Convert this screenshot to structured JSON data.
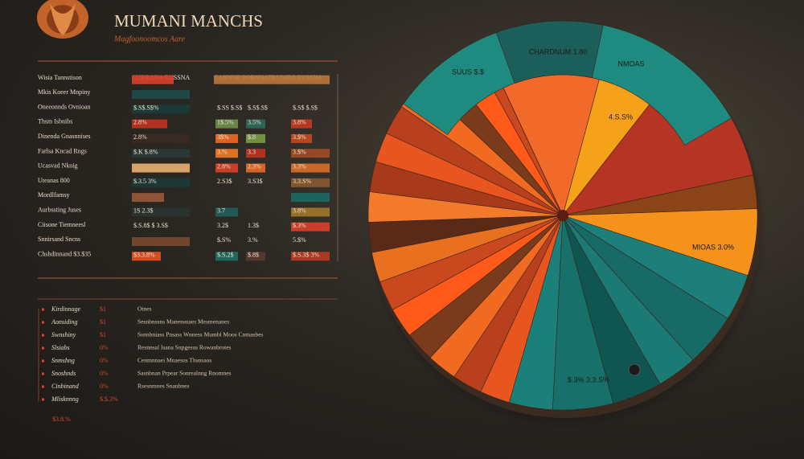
{
  "header": {
    "title": "MUMANI MANCHS",
    "subtitle": "Magfoonoomcos Aare"
  },
  "table": {
    "columns": [
      "CURRANA RUSSNA",
      "CANNNE PORNNATRUNIRS RUSSNA"
    ],
    "rows": [
      {
        "label": "Wisia Tannstison"
      },
      {
        "label": "Mkis Koeer Mnpiny"
      },
      {
        "label": "Oneeonnds Ovnioan",
        "c1": "$.S$.S$%",
        "c2": "$.SS $.S$",
        "c3": "$.S$.S$",
        "c4": "$.S$ $.S$"
      },
      {
        "label": "Thsm Isbnibs",
        "c1": "2.8%",
        "c2": "1$.5%",
        "c3": "3.5%",
        "c4": "3.8%"
      },
      {
        "label": "Dinenda Gnasnnises",
        "c1": "2.8%",
        "c2": "3$%",
        "c3": "$.8",
        "c4": "3.$%"
      },
      {
        "label": "Farlsa Kncad Rngs",
        "c1": "$.K $.8%",
        "c2": "3.%",
        "c3": "3.3",
        "c4": "3.$%"
      },
      {
        "label": "Ucasvad Nkoig",
        "c2": "2.8%",
        "c3": "2.3%",
        "c4": "3.3%"
      },
      {
        "label": "Uteanas 800",
        "c1": "$.3.5 3%",
        "c2": "2.S3$",
        "c3": "3.S3$",
        "c4": "3.3.S%"
      },
      {
        "label": "Mordlfamsy"
      },
      {
        "label": "Aurbssting Juses",
        "c1": "1S 2.3$",
        "c2": "3.7",
        "c4": "3.8%"
      },
      {
        "label": "Ciisone Tiemneesl",
        "c1": "$.S.8$ $ 3.S$",
        "c2": "3.2$",
        "c3": "1.3$",
        "c4": "$.3%"
      },
      {
        "label": "Snnirsand Sncns",
        "c2": "$.S%",
        "c3": "3.%",
        "c4": "5.$%"
      },
      {
        "label": "Chshdinnand $3.$35",
        "c1": "$3.3.8%",
        "c2": "$.S.2$",
        "c3": "$.8$",
        "c4": "$.S.3$ 3%"
      }
    ]
  },
  "list": {
    "items": [
      {
        "label": "Kirdinnage",
        "value": "$1"
      },
      {
        "label": "Aonsiding",
        "value": "$1"
      },
      {
        "label": "Swnshiny",
        "value": "$1"
      },
      {
        "label": "Slsiabs",
        "value": "0%"
      },
      {
        "label": "Snmshng",
        "value": "0%"
      },
      {
        "label": "Snoshnds",
        "value": "0%"
      },
      {
        "label": "Cinbinand",
        "value": "0%"
      },
      {
        "label": "Mlisknnng",
        "value": "$.$.3%"
      }
    ],
    "total": "$3.8.%"
  },
  "notes": {
    "title": "Otnes",
    "lines": [
      "Sesnbnssns Manensnaes Mesmenanes",
      "Ssnnbniass Pnsass Wnness Mumbl Moos Cnmasbes",
      "Resnnsal Isana Snpgesus Rowanbrotes",
      "Cenmnnaei Mnaesus Thsnsaos",
      "Sasnbnan Prpear Sonrealnng Rnomnes",
      "Rsesnmnes Snanbnes"
    ]
  },
  "pie_labels": [
    "CHARDNUM 1.80",
    "NMOAS",
    "SUUS $.$",
    "4.S.S%",
    "MIOAS 3.0%",
    "$.3% 3.3.S%"
  ]
}
